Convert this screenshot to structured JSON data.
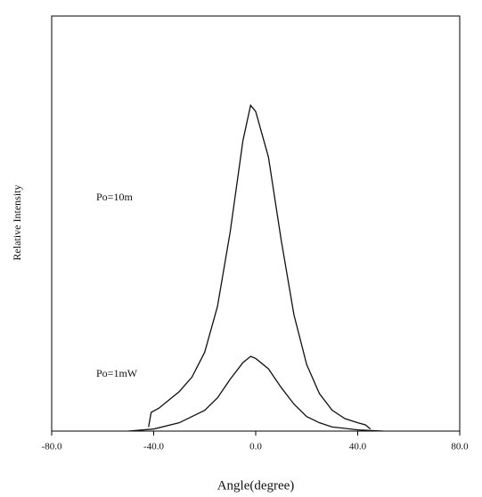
{
  "chart_data": {
    "type": "line",
    "xlabel": "Angle(degree)",
    "ylabel": "Relative Intensity",
    "xlim": [
      -80,
      80
    ],
    "xticks": [
      {
        "value": -80,
        "label": "-80.0"
      },
      {
        "value": -40,
        "label": "-40.0"
      },
      {
        "value": 0,
        "label": "0.0"
      },
      {
        "value": 40,
        "label": "40.0"
      },
      {
        "value": 80,
        "label": "80.0"
      }
    ],
    "ylim": [
      0,
      100
    ],
    "series": [
      {
        "name": "Po=10m",
        "color": "#111111",
        "x": [
          -42,
          -41,
          -38,
          -35,
          -30,
          -25,
          -20,
          -15,
          -10,
          -5,
          -2,
          0,
          5,
          10,
          15,
          20,
          25,
          30,
          35,
          40,
          43,
          45
        ],
        "values": [
          1,
          4.5,
          5.5,
          7,
          9.5,
          13,
          19,
          30,
          48,
          70,
          78.5,
          77,
          66,
          46,
          28,
          16,
          9,
          5,
          3,
          2,
          1.5,
          0.5
        ]
      },
      {
        "name": "Po=1mW",
        "color": "#111111",
        "x": [
          -50,
          -40,
          -30,
          -20,
          -15,
          -10,
          -5,
          -2,
          0,
          5,
          10,
          15,
          20,
          25,
          30,
          40,
          50
        ],
        "values": [
          0,
          0.5,
          2,
          5,
          8,
          12.5,
          16.5,
          18,
          17.5,
          15,
          10.5,
          6.5,
          3.5,
          2,
          1,
          0.3,
          0
        ]
      }
    ]
  }
}
